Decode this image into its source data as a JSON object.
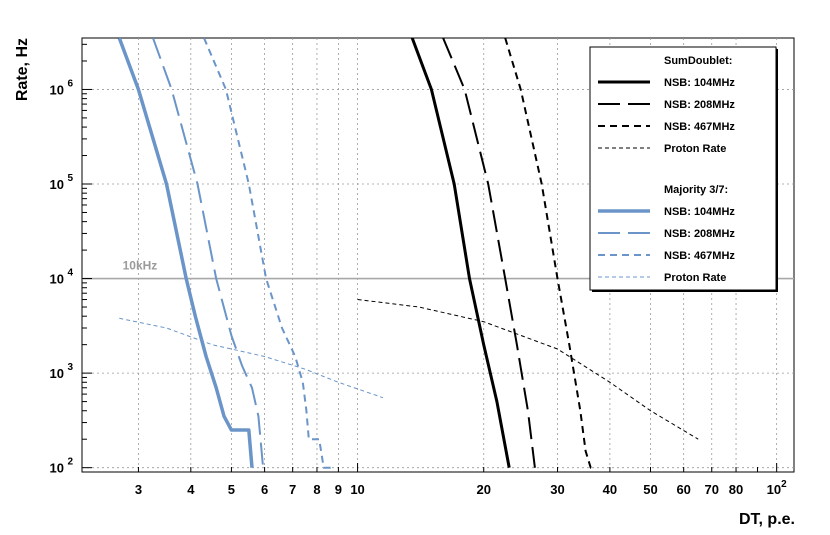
{
  "chart_data": {
    "type": "line",
    "xlabel": "DT,  p.e.",
    "ylabel": "Rate, Hz",
    "x_scale": "log",
    "y_scale": "log",
    "xlim": [
      2.2,
      110
    ],
    "ylim": [
      90,
      3500000
    ],
    "grid": true,
    "x_ticks": [
      {
        "value": 3,
        "label": "3"
      },
      {
        "value": 4,
        "label": "4"
      },
      {
        "value": 5,
        "label": "5"
      },
      {
        "value": 6,
        "label": "6"
      },
      {
        "value": 7,
        "label": "7"
      },
      {
        "value": 8,
        "label": "8"
      },
      {
        "value": 9,
        "label": "9"
      },
      {
        "value": 10,
        "label": "10"
      },
      {
        "value": 20,
        "label": "20"
      },
      {
        "value": 30,
        "label": "30"
      },
      {
        "value": 40,
        "label": "40"
      },
      {
        "value": 50,
        "label": "50"
      },
      {
        "value": 60,
        "label": "60"
      },
      {
        "value": 70,
        "label": "70"
      },
      {
        "value": 80,
        "label": "80"
      },
      {
        "value": 100,
        "label": "10",
        "sup": "2"
      }
    ],
    "y_ticks": [
      {
        "value": 100,
        "label": "10",
        "sup": "2"
      },
      {
        "value": 1000,
        "label": "10",
        "sup": "3"
      },
      {
        "value": 10000,
        "label": "10",
        "sup": "4"
      },
      {
        "value": 100000,
        "label": "10",
        "sup": "5"
      },
      {
        "value": 1000000,
        "label": "10",
        "sup": "6"
      }
    ],
    "reference_line": {
      "y": 10000,
      "label": "10kHz",
      "color": "#a8a8a8"
    },
    "legend": {
      "placement": "top-right",
      "groups": [
        {
          "title": "SumDoublet:",
          "entries": [
            "NSB: 104MHz",
            "NSB: 208MHz",
            "NSB: 467MHz",
            "Proton Rate"
          ]
        },
        {
          "title": "Majority 3/7:",
          "entries": [
            "NSB: 104MHz",
            "NSB: 208MHz",
            "NSB: 467MHz",
            "Proton Rate"
          ]
        }
      ]
    },
    "series": [
      {
        "group": "SumDoublet:",
        "name": "NSB: 104MHz",
        "color": "#000000",
        "style": "solid",
        "width": 3,
        "points": [
          [
            13.5,
            3500000
          ],
          [
            15,
            1000000
          ],
          [
            17,
            100000
          ],
          [
            18.5,
            10000
          ],
          [
            20,
            2000
          ],
          [
            21.5,
            500
          ],
          [
            23,
            100
          ]
        ]
      },
      {
        "group": "SumDoublet:",
        "name": "NSB: 208MHz",
        "color": "#000000",
        "style": "long-dash",
        "width": 2,
        "points": [
          [
            16,
            3500000
          ],
          [
            18,
            1000000
          ],
          [
            20.5,
            100000
          ],
          [
            22.5,
            10000
          ],
          [
            24,
            2000
          ],
          [
            25.5,
            400
          ],
          [
            26.5,
            100
          ]
        ]
      },
      {
        "group": "SumDoublet:",
        "name": "NSB: 467MHz",
        "color": "#000000",
        "style": "dash",
        "width": 2,
        "points": [
          [
            22.5,
            3500000
          ],
          [
            24.5,
            1000000
          ],
          [
            27.5,
            100000
          ],
          [
            30,
            10000
          ],
          [
            32,
            2000
          ],
          [
            34,
            400
          ],
          [
            35,
            150
          ],
          [
            36,
            100
          ],
          [
            37,
            100
          ]
        ]
      },
      {
        "group": "SumDoublet:",
        "name": "Proton Rate",
        "color": "#000000",
        "style": "fine-dash",
        "width": 1,
        "points": [
          [
            10,
            6000
          ],
          [
            14,
            5000
          ],
          [
            20,
            3500
          ],
          [
            30,
            1800
          ],
          [
            40,
            800
          ],
          [
            50,
            400
          ],
          [
            65,
            200
          ]
        ]
      },
      {
        "group": "Majority 3/7:",
        "name": "NSB: 104MHz",
        "color": "#6b95c8",
        "style": "solid",
        "width": 3.5,
        "points": [
          [
            2.7,
            3500000
          ],
          [
            3.0,
            1000000
          ],
          [
            3.5,
            100000
          ],
          [
            3.9,
            10000
          ],
          [
            4.1,
            4000
          ],
          [
            4.35,
            1500
          ],
          [
            4.6,
            700
          ],
          [
            4.8,
            350
          ],
          [
            5.0,
            250
          ],
          [
            5.5,
            250
          ],
          [
            5.6,
            100
          ]
        ]
      },
      {
        "group": "Majority 3/7:",
        "name": "NSB: 208MHz",
        "color": "#6b95c8",
        "style": "long-dash",
        "width": 2,
        "points": [
          [
            3.25,
            3500000
          ],
          [
            3.6,
            1000000
          ],
          [
            4.15,
            100000
          ],
          [
            4.6,
            10000
          ],
          [
            5.0,
            2500
          ],
          [
            5.3,
            1200
          ],
          [
            5.6,
            700
          ],
          [
            5.8,
            350
          ],
          [
            5.95,
            100
          ]
        ]
      },
      {
        "group": "Majority 3/7:",
        "name": "NSB: 467MHz",
        "color": "#6b95c8",
        "style": "dash",
        "width": 2,
        "points": [
          [
            4.3,
            3500000
          ],
          [
            4.85,
            1000000
          ],
          [
            5.5,
            100000
          ],
          [
            6.05,
            10000
          ],
          [
            6.6,
            3000
          ],
          [
            7.1,
            1500
          ],
          [
            7.4,
            800
          ],
          [
            7.55,
            400
          ],
          [
            7.65,
            200
          ],
          [
            8.1,
            200
          ],
          [
            8.3,
            100
          ],
          [
            8.7,
            100
          ]
        ]
      },
      {
        "group": "Majority 3/7:",
        "name": "Proton Rate",
        "color": "#6b95c8",
        "style": "fine-dash",
        "width": 1,
        "points": [
          [
            2.7,
            3800
          ],
          [
            3.5,
            3000
          ],
          [
            4.5,
            2000
          ],
          [
            6,
            1500
          ],
          [
            7.5,
            1100
          ],
          [
            9,
            800
          ],
          [
            11.5,
            550
          ]
        ]
      }
    ]
  }
}
